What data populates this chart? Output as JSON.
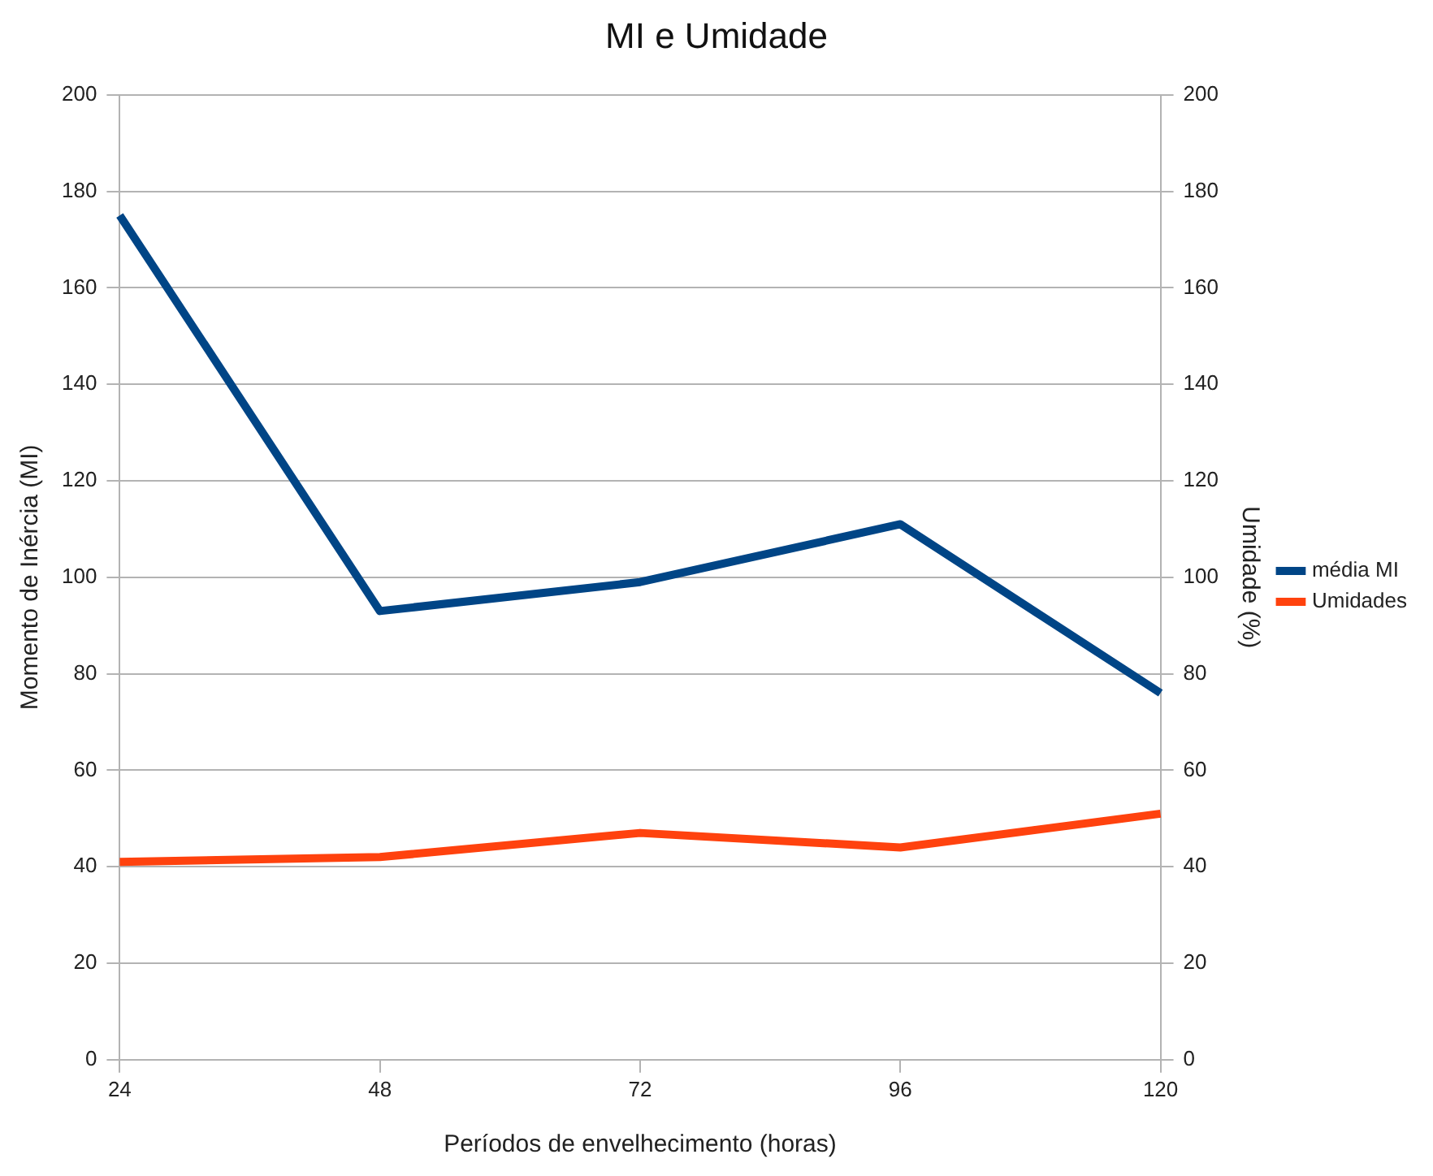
{
  "chart_data": {
    "type": "line",
    "title": "MI e Umidade",
    "xlabel": "Períodos de envelhecimento (horas)",
    "ylabel": "Momento de Inércia (MI)",
    "y2label": "Umidade (%)",
    "categories": [
      "24",
      "48",
      "72",
      "96",
      "120"
    ],
    "series": [
      {
        "name": "média MI",
        "color": "#004586",
        "values": [
          175,
          93,
          99,
          111,
          76
        ]
      },
      {
        "name": "Umidades",
        "color": "#ff420e",
        "values": [
          41,
          42,
          47,
          44,
          51
        ]
      }
    ],
    "ylim": [
      0,
      200
    ],
    "yticks": [
      0,
      20,
      40,
      60,
      80,
      100,
      120,
      140,
      160,
      180,
      200
    ],
    "y2lim": [
      0,
      200
    ],
    "y2ticks": [
      0,
      20,
      40,
      60,
      80,
      100,
      120,
      140,
      160,
      180,
      200
    ],
    "grid": "y",
    "legend": "right",
    "marker": "none",
    "line_style": "solid"
  }
}
